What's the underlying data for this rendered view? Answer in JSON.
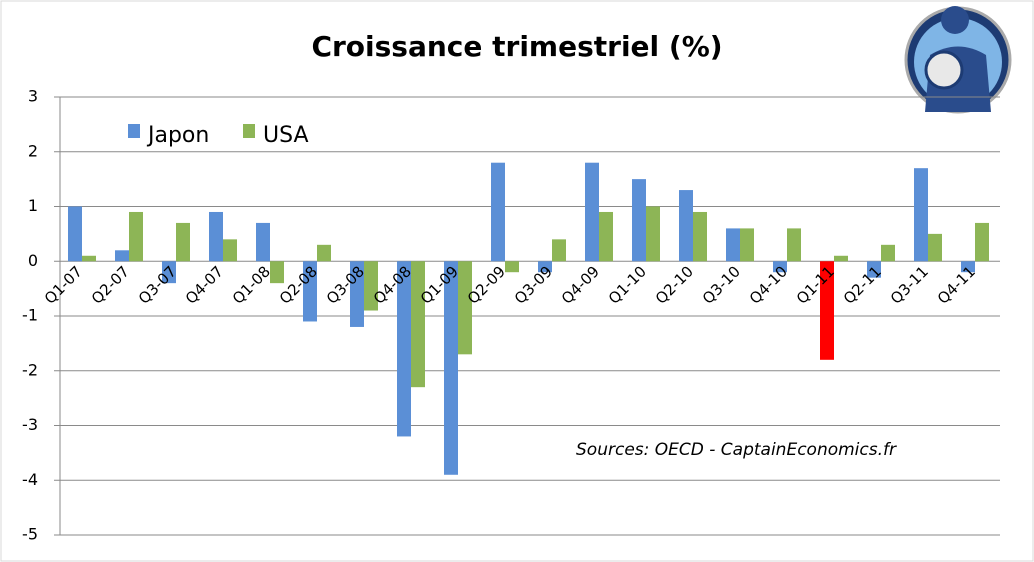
{
  "chart_data": {
    "type": "bar",
    "title": "Croissance trimestriel (%)",
    "annotation": "Sources: OECD - CaptainEconomics.fr",
    "categories": [
      "Q1-07",
      "Q2-07",
      "Q3-07",
      "Q4-07",
      "Q1-08",
      "Q2-08",
      "Q3-08",
      "Q4-08",
      "Q1-09",
      "Q2-09",
      "Q3-09",
      "Q4-09",
      "Q1-10",
      "Q2-10",
      "Q3-10",
      "Q4-10",
      "Q1-11",
      "Q2-11",
      "Q3-11",
      "Q4-11"
    ],
    "series": [
      {
        "name": "Japon",
        "color": "#5b8fd6",
        "colors": [
          "#5b8fd6",
          "#5b8fd6",
          "#5b8fd6",
          "#5b8fd6",
          "#5b8fd6",
          "#5b8fd6",
          "#5b8fd6",
          "#5b8fd6",
          "#5b8fd6",
          "#5b8fd6",
          "#5b8fd6",
          "#5b8fd6",
          "#5b8fd6",
          "#5b8fd6",
          "#5b8fd6",
          "#5b8fd6",
          "#ff0000",
          "#5b8fd6",
          "#5b8fd6",
          "#5b8fd6"
        ],
        "values": [
          1.0,
          0.2,
          -0.4,
          0.9,
          0.7,
          -1.1,
          -1.2,
          -3.2,
          -3.9,
          1.8,
          -0.2,
          1.8,
          1.5,
          1.3,
          0.6,
          -0.2,
          -1.8,
          -0.3,
          1.7,
          -0.2
        ]
      },
      {
        "name": "USA",
        "color": "#8db556",
        "values": [
          0.1,
          0.9,
          0.7,
          0.4,
          -0.4,
          0.3,
          -0.9,
          -2.3,
          -1.7,
          -0.2,
          0.4,
          0.9,
          1.0,
          0.9,
          0.6,
          0.6,
          0.1,
          0.3,
          0.5,
          0.7
        ]
      }
    ],
    "ylim": [
      -5,
      3
    ],
    "yticks": [
      -5,
      -4,
      -3,
      -2,
      -1,
      0,
      1,
      2,
      3
    ],
    "grid": true
  }
}
